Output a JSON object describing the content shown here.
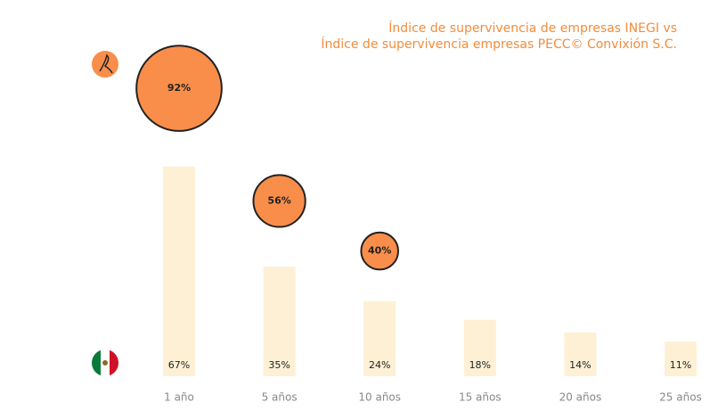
{
  "chart_data": {
    "type": "bar_bubble",
    "title": [
      "Índice de supervivencia de empresas INEGI vs",
      "Índice de supervivencia empresas PECC© Convixión S.C."
    ],
    "categories": [
      "1 año",
      "5 años",
      "10 años",
      "15 años",
      "20 años",
      "25 años"
    ],
    "series": [
      {
        "type": "bar",
        "color": "#fdf0d5",
        "values": [
          67,
          35,
          24,
          18,
          14,
          11
        ],
        "value_labels": [
          "67%",
          "35%",
          "24%",
          "18%",
          "14%",
          "11%"
        ]
      },
      {
        "type": "bubble",
        "color": "#f98e4a",
        "values": [
          92,
          56,
          40,
          null,
          null,
          null
        ],
        "value_labels": [
          "92%",
          "56%",
          "40%",
          null,
          null,
          null
        ]
      }
    ],
    "ylim": [
      0,
      100
    ]
  }
}
